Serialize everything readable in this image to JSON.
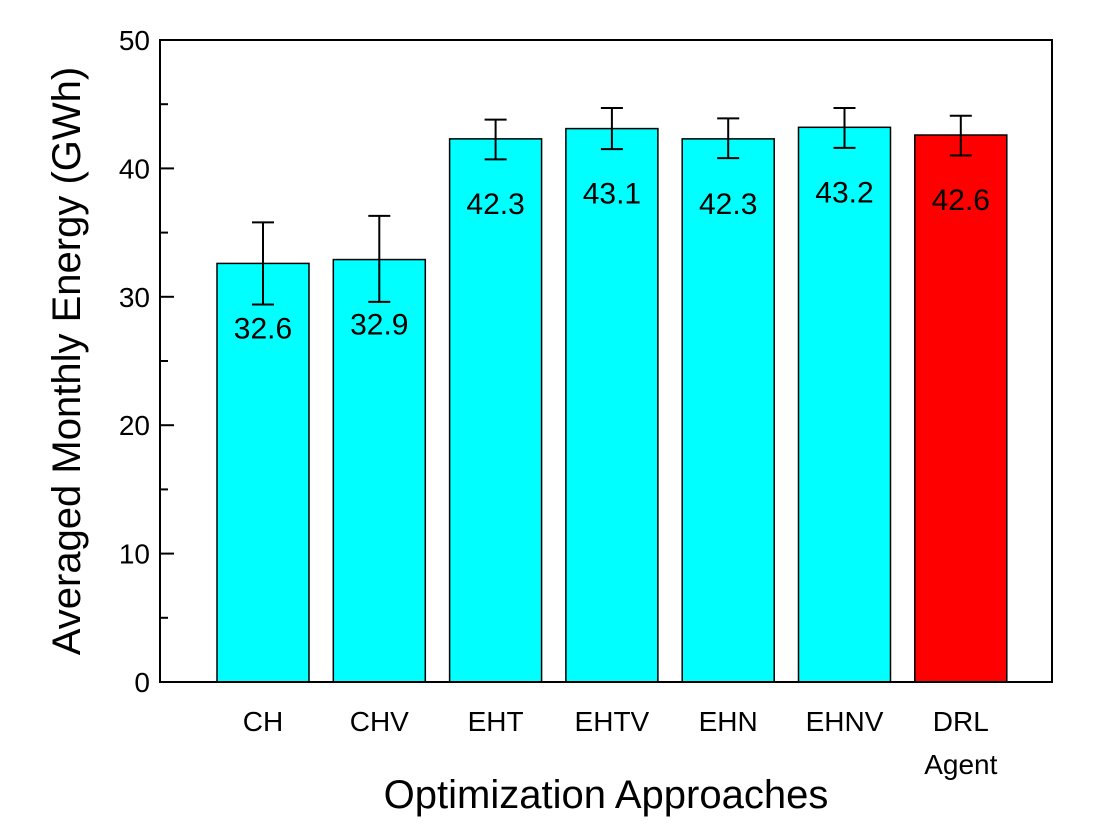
{
  "chart_data": {
    "type": "bar",
    "title": "",
    "xlabel": "Optimization Approaches",
    "ylabel": "Averaged Monthly Energy (GWh)",
    "ylim": [
      0,
      50
    ],
    "yticks": [
      "0",
      "10",
      "20",
      "30",
      "40",
      "50"
    ],
    "categories": [
      [
        "CH"
      ],
      [
        "CHV"
      ],
      [
        "EHT"
      ],
      [
        "EHTV"
      ],
      [
        "EHN"
      ],
      [
        "EHNV"
      ],
      [
        "DRL",
        "Agent"
      ]
    ],
    "values": [
      32.6,
      32.9,
      42.3,
      43.1,
      42.3,
      43.2,
      42.6
    ],
    "value_labels": [
      "32.6",
      "32.9",
      "42.3",
      "43.1",
      "42.3",
      "43.2",
      "42.6"
    ],
    "error_low": [
      29.4,
      29.6,
      40.7,
      41.5,
      40.8,
      41.6,
      41.0
    ],
    "error_high": [
      35.8,
      36.3,
      43.8,
      44.7,
      43.9,
      44.7,
      44.1
    ],
    "colors": [
      "#00ffff",
      "#00ffff",
      "#00ffff",
      "#00ffff",
      "#00ffff",
      "#00ffff",
      "#ff0000"
    ],
    "grid": false,
    "legend": "none"
  }
}
